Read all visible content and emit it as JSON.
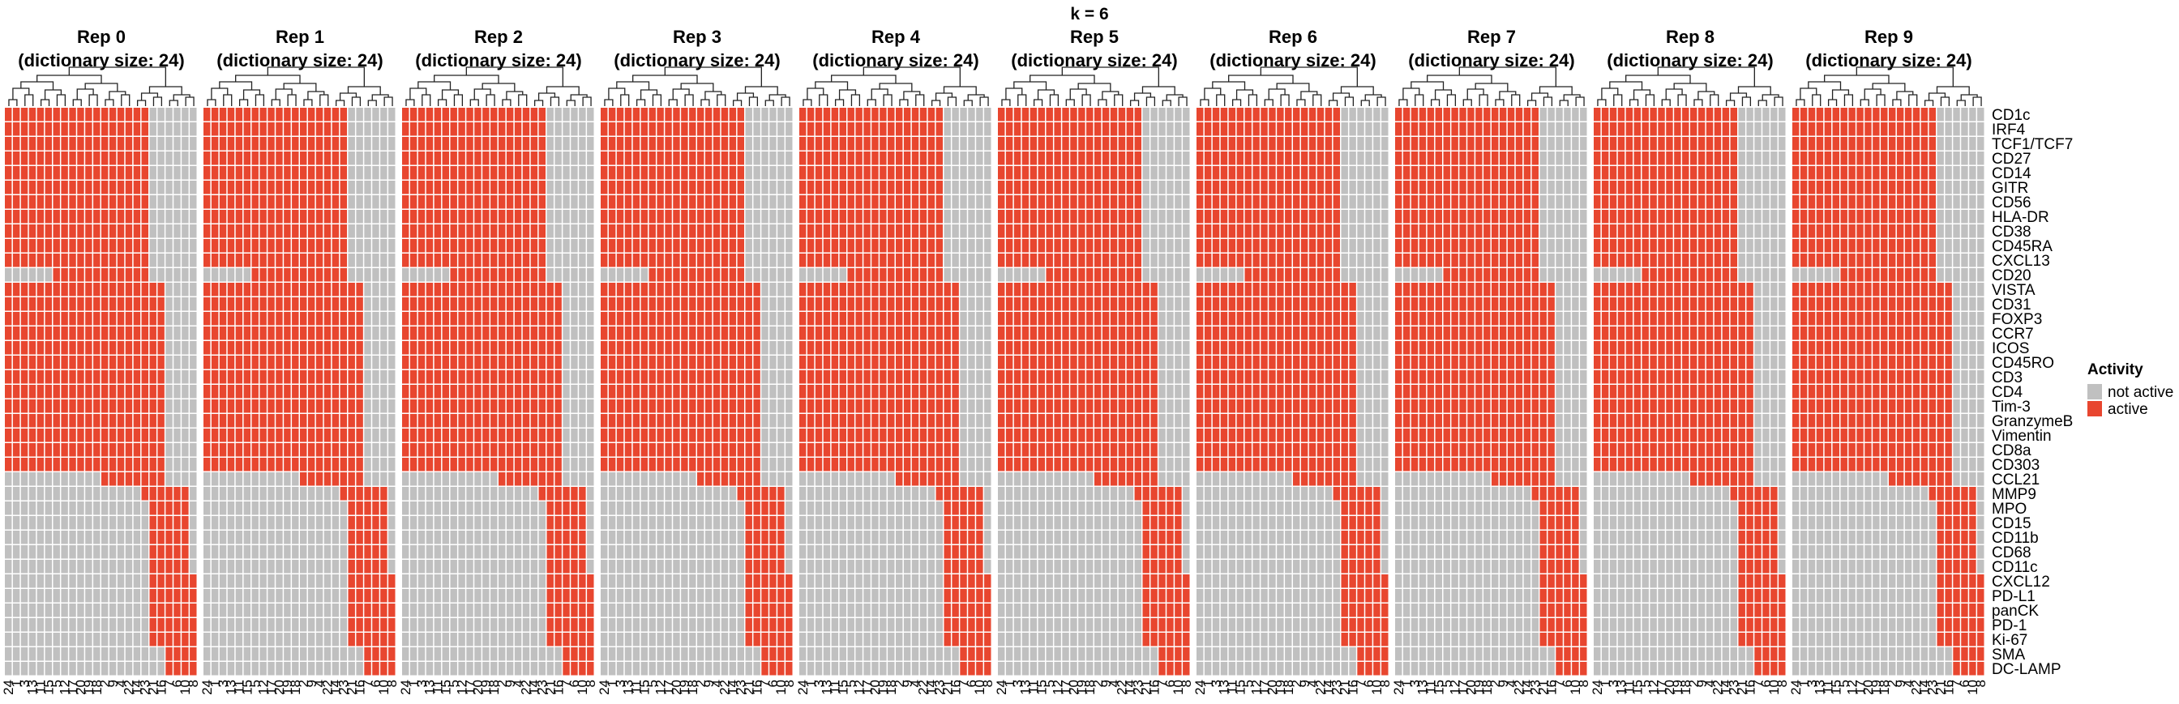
{
  "chart_data": {
    "type": "heatmap",
    "title": "k = 6",
    "colors": {
      "active": "#e8462f",
      "not_active": "#c0c0c0"
    },
    "markers": [
      "CD1c",
      "IRF4",
      "TCF1/TCF7",
      "CD27",
      "CD14",
      "GITR",
      "CD56",
      "HLA-DR",
      "CD38",
      "CD45RA",
      "CXCL13",
      "CD20",
      "VISTA",
      "CD31",
      "FOXP3",
      "CCR7",
      "ICOS",
      "CD45RO",
      "CD3",
      "CD4",
      "Tim-3",
      "GranzymeB",
      "Vimentin",
      "CD8a",
      "CD303",
      "CCL21",
      "MMP9",
      "MPO",
      "CD15",
      "CD11b",
      "CD68",
      "CD11c",
      "CXCL12",
      "PD-L1",
      "panCK",
      "PD-1",
      "Ki-67",
      "SMA",
      "DC-LAMP"
    ],
    "column_labels": [
      "24",
      "1",
      "3",
      "13",
      "11",
      "15",
      "5",
      "12",
      "17",
      "20",
      "19",
      "18",
      "2",
      "9",
      "4",
      "22",
      "14",
      "23",
      "21",
      "16",
      "7",
      "6",
      "10",
      "8"
    ],
    "legend": {
      "title": "Activity",
      "position": "right",
      "entries": [
        {
          "label": "not active",
          "key": "not_active"
        },
        {
          "label": "active",
          "key": "active"
        }
      ]
    },
    "active_cells": {
      "0": [
        0,
        1,
        2,
        3,
        4,
        5,
        6,
        7,
        8,
        9,
        10,
        12,
        13,
        14,
        15,
        16,
        17,
        18,
        19,
        20,
        21,
        22,
        23,
        24
      ],
      "1": [
        0,
        1,
        2,
        3,
        4,
        5,
        6,
        7,
        8,
        9,
        10,
        12,
        13,
        14,
        15,
        16,
        17,
        18,
        19,
        20,
        21,
        22,
        23,
        24
      ],
      "2": [
        0,
        1,
        2,
        3,
        4,
        5,
        6,
        7,
        8,
        9,
        10,
        12,
        13,
        14,
        15,
        16,
        17,
        18,
        19,
        20,
        21,
        22,
        23,
        24
      ],
      "3": [
        0,
        1,
        2,
        3,
        4,
        5,
        6,
        7,
        8,
        9,
        10,
        12,
        13,
        14,
        15,
        16,
        17,
        18,
        19,
        20,
        21,
        22,
        23,
        24
      ],
      "4": [
        0,
        1,
        2,
        3,
        4,
        5,
        6,
        7,
        8,
        9,
        10,
        12,
        13,
        14,
        15,
        16,
        17,
        18,
        19,
        20,
        21,
        22,
        23,
        24
      ],
      "5": [
        0,
        1,
        2,
        3,
        4,
        5,
        6,
        7,
        8,
        9,
        10,
        12,
        13,
        14,
        15,
        16,
        17,
        18,
        19,
        20,
        21,
        22,
        23,
        24
      ],
      "6": [
        0,
        1,
        2,
        3,
        4,
        5,
        6,
        7,
        8,
        9,
        10,
        11,
        12,
        13,
        14,
        15,
        16,
        17,
        18,
        19,
        20,
        21,
        22,
        23,
        24
      ],
      "7": [
        0,
        1,
        2,
        3,
        4,
        5,
        6,
        7,
        8,
        9,
        10,
        11,
        12,
        13,
        14,
        15,
        16,
        17,
        18,
        19,
        20,
        21,
        22,
        23,
        24
      ],
      "8": [
        0,
        1,
        2,
        3,
        4,
        5,
        6,
        7,
        8,
        9,
        10,
        11,
        12,
        13,
        14,
        15,
        16,
        17,
        18,
        19,
        20,
        21,
        22,
        23,
        24
      ],
      "9": [
        0,
        1,
        2,
        3,
        4,
        5,
        6,
        7,
        8,
        9,
        10,
        11,
        12,
        13,
        14,
        15,
        16,
        17,
        18,
        19,
        20,
        21,
        22,
        23,
        24
      ],
      "10": [
        0,
        1,
        2,
        3,
        4,
        5,
        6,
        7,
        8,
        9,
        10,
        11,
        12,
        13,
        14,
        15,
        16,
        17,
        18,
        19,
        20,
        21,
        22,
        23,
        24
      ],
      "11": [
        0,
        1,
        2,
        3,
        4,
        5,
        6,
        7,
        8,
        9,
        10,
        11,
        12,
        13,
        14,
        15,
        16,
        17,
        18,
        19,
        20,
        21,
        22,
        23,
        24
      ],
      "12": [
        0,
        1,
        2,
        3,
        4,
        5,
        6,
        7,
        8,
        9,
        10,
        11,
        12,
        13,
        14,
        15,
        16,
        17,
        18,
        19,
        20,
        21,
        22,
        23,
        24,
        25
      ],
      "13": [
        0,
        1,
        2,
        3,
        4,
        5,
        6,
        7,
        8,
        9,
        10,
        11,
        12,
        13,
        14,
        15,
        16,
        17,
        18,
        19,
        20,
        21,
        22,
        23,
        24,
        25
      ],
      "14": [
        0,
        1,
        2,
        3,
        4,
        5,
        6,
        7,
        8,
        9,
        10,
        11,
        12,
        13,
        14,
        15,
        16,
        17,
        18,
        19,
        20,
        21,
        22,
        23,
        24,
        25
      ],
      "15": [
        0,
        1,
        2,
        3,
        4,
        5,
        6,
        7,
        8,
        9,
        10,
        11,
        12,
        13,
        14,
        15,
        16,
        17,
        18,
        19,
        20,
        21,
        22,
        23,
        24,
        25
      ],
      "16": [
        0,
        1,
        2,
        3,
        4,
        5,
        6,
        7,
        8,
        9,
        10,
        11,
        12,
        13,
        14,
        15,
        16,
        17,
        18,
        19,
        20,
        21,
        22,
        23,
        24,
        25
      ],
      "17": [
        0,
        1,
        2,
        3,
        4,
        5,
        6,
        7,
        8,
        9,
        10,
        11,
        12,
        13,
        14,
        15,
        16,
        17,
        18,
        19,
        20,
        21,
        22,
        23,
        24,
        25,
        26
      ],
      "18": [
        12,
        13,
        14,
        15,
        16,
        17,
        18,
        19,
        20,
        21,
        22,
        23,
        24,
        25,
        26,
        27,
        28,
        29,
        30,
        31,
        32,
        33,
        34,
        35,
        36
      ],
      "19": [
        12,
        13,
        14,
        15,
        16,
        17,
        18,
        19,
        20,
        21,
        22,
        23,
        24,
        25,
        26,
        27,
        28,
        29,
        30,
        31,
        32,
        33,
        34,
        35,
        36
      ],
      "20": [
        26,
        27,
        28,
        29,
        30,
        31,
        32,
        33,
        34,
        35,
        36,
        37,
        38
      ],
      "21": [
        26,
        27,
        28,
        29,
        30,
        31,
        32,
        33,
        34,
        35,
        36,
        37,
        38
      ],
      "22": [
        26,
        27,
        28,
        29,
        30,
        31,
        32,
        33,
        34,
        35,
        36,
        37,
        38
      ],
      "23": [
        32,
        33,
        34,
        35,
        36,
        37,
        38
      ]
    }
  }
}
